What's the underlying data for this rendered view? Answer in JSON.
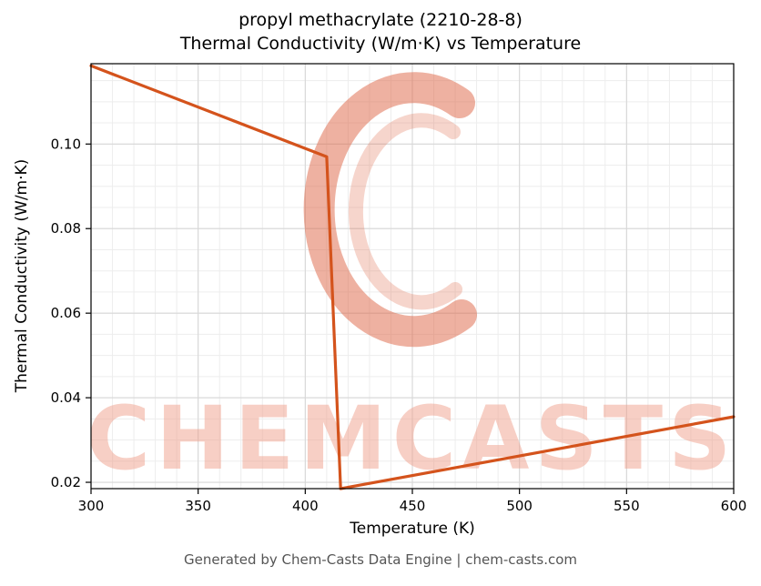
{
  "page": {
    "title_line1": "propyl methacrylate (2210-28-8)",
    "title_line2": "Thermal Conductivity (W/m·K) vs Temperature",
    "footer": "Generated by Chem-Casts Data Engine | chem-casts.com"
  },
  "watermark": {
    "text": "CHEMCASTS",
    "text_color": "#f0a08c",
    "text_opacity": 0.5,
    "logo_color": "#df6b4c",
    "logo_opacity": 0.52
  },
  "chart_data": {
    "type": "line",
    "title": "propyl methacrylate (2210-28-8) — Thermal Conductivity (W/m·K) vs Temperature",
    "xlabel": "Temperature (K)",
    "ylabel": "Thermal Conductivity (W/m·K)",
    "xlim": [
      300,
      600
    ],
    "ylim": [
      0.0185,
      0.119
    ],
    "x_ticks": [
      300,
      350,
      400,
      450,
      500,
      550,
      600
    ],
    "y_ticks": [
      0.02,
      0.04,
      0.06,
      0.08,
      0.1
    ],
    "x_minor_step": 10,
    "y_minor_step": 0.005,
    "grid": true,
    "legend": false,
    "line_color": "#d4531c",
    "line_width": 3.2,
    "series": [
      {
        "name": "Thermal Conductivity",
        "points": [
          [
            300,
            0.1185
          ],
          [
            410,
            0.097
          ],
          [
            416.5,
            0.0185
          ],
          [
            600,
            0.0355
          ]
        ]
      }
    ]
  }
}
